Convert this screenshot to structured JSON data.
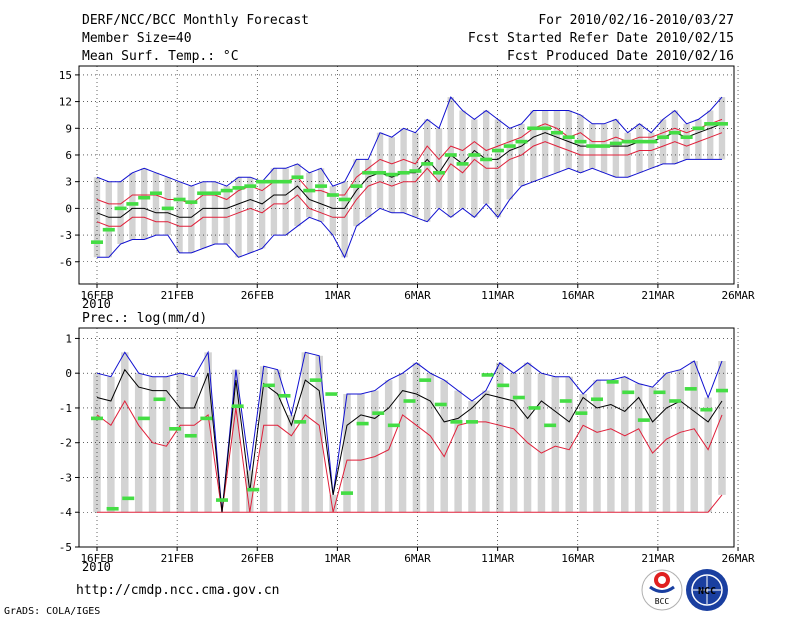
{
  "header": {
    "line1_left": "DERF/NCC/BCC Monthly Forecast",
    "line2_left": "Member Size=40",
    "line3_left": "Mean Surf. Temp.: °C",
    "line1_right": "For 2010/02/16-2010/03/27",
    "line2_right": "Fcst Started Refer Date 2010/02/15",
    "line3_right": "Fcst Produced Date 2010/02/16"
  },
  "footer": {
    "url": "http://cmdp.ncc.cma.gov.cn",
    "credit": "GrADS: COLA/IGES",
    "logo_bcc": "BCC",
    "logo_ncc": "NCC"
  },
  "colors": {
    "band": "#d3d3d3",
    "median": "#000000",
    "inner": "#e0203a",
    "outer": "#1010d0",
    "ensemble_mean": "#44dd44",
    "grid": "#000000"
  },
  "chart_data": [
    {
      "type": "line",
      "title": "Mean Surf. Temp.: °C",
      "x_tick_labels": [
        "16FEB",
        "21FEB",
        "26FEB",
        "1MAR",
        "6MAR",
        "11MAR",
        "16MAR",
        "21MAR",
        "26MAR"
      ],
      "x_year_label": "2010",
      "y_ticks": [
        "-6",
        "-3",
        "0",
        "3",
        "6",
        "9",
        "12",
        "15"
      ],
      "ylim": [
        -8.5,
        16
      ],
      "days": 40,
      "series": [
        {
          "name": "max",
          "values": [
            3.5,
            3,
            3,
            4,
            4.5,
            4,
            3.5,
            3,
            2.5,
            3,
            3,
            2.5,
            3.5,
            3.5,
            3,
            4.5,
            4.5,
            5,
            4,
            4.5,
            2.5,
            3,
            5.5,
            5.5,
            8.5,
            8,
            9,
            8.5,
            10,
            9,
            12.5,
            11,
            10,
            11,
            10,
            9,
            9.5,
            11,
            11,
            11,
            11,
            10.5,
            9.5,
            9.5,
            10,
            8.5,
            9.5,
            8.5,
            10,
            11,
            9.5,
            10,
            11,
            12.5
          ]
        },
        {
          "name": "upper",
          "values": [
            1,
            0.5,
            0.5,
            1.5,
            1.5,
            1.5,
            1,
            1,
            0.5,
            1.5,
            1.5,
            1,
            2,
            2.5,
            2,
            3,
            3,
            3.5,
            2,
            2,
            1.5,
            1.5,
            3.5,
            4.5,
            5.5,
            5,
            5.5,
            5,
            7,
            5.5,
            7,
            6.5,
            7.5,
            6.5,
            7,
            7.5,
            8,
            9,
            9.5,
            9,
            8,
            8.5,
            7.5,
            7.5,
            8,
            7.5,
            8,
            8,
            8.5,
            9,
            8.5,
            9,
            9.5,
            10
          ]
        },
        {
          "name": "median",
          "values": [
            -0.5,
            -1,
            -1,
            0,
            0,
            -0.5,
            -0.5,
            -1,
            -1,
            0,
            0,
            0,
            0.5,
            1,
            0.5,
            1.5,
            1.5,
            2.5,
            1,
            0.5,
            0,
            0,
            2,
            3.5,
            4,
            3.5,
            4,
            4,
            5.5,
            4,
            6,
            5,
            6.5,
            5.5,
            5.5,
            6.5,
            7,
            8,
            8.5,
            8,
            7.5,
            7,
            7,
            7,
            7,
            7,
            7.5,
            7.5,
            8,
            8.5,
            8,
            8.5,
            9,
            9.5
          ]
        },
        {
          "name": "lower",
          "values": [
            -1.5,
            -2,
            -2,
            -1,
            -1,
            -1.5,
            -1.5,
            -2,
            -2,
            -1,
            -1,
            -1,
            -0.5,
            0,
            -0.5,
            0.5,
            0.5,
            1.5,
            0,
            -0.5,
            -1,
            -1,
            1,
            2.5,
            3,
            2.5,
            3,
            3,
            4.5,
            3,
            5,
            4,
            5.5,
            4.5,
            4.5,
            5.5,
            6,
            7,
            7.5,
            7,
            6.5,
            6,
            6,
            6,
            6,
            6,
            6.5,
            6.5,
            7,
            7.5,
            7,
            7.5,
            8,
            8.5
          ]
        },
        {
          "name": "min",
          "values": [
            -5.5,
            -5.5,
            -4,
            -3.5,
            -3.5,
            -3,
            -3,
            -5,
            -5,
            -4.5,
            -4,
            -4,
            -5.5,
            -5,
            -4.5,
            -3,
            -3,
            -2,
            -1,
            -1.5,
            -3,
            -5.5,
            -2,
            -1,
            0,
            -0.5,
            -0.5,
            -1,
            -1.5,
            0,
            -1,
            0,
            -1,
            0.5,
            -1,
            1,
            2.5,
            3,
            3.5,
            4,
            4.5,
            4,
            4.5,
            4,
            3.5,
            3.5,
            4,
            4.5,
            5,
            5,
            5.5,
            5.5,
            5.5,
            5.5
          ]
        },
        {
          "name": "ensemble_mean",
          "values": [
            -3.8,
            -2.4,
            0,
            0.5,
            1.2,
            1.7,
            0,
            1,
            0.7,
            1.7,
            1.7,
            2,
            2.3,
            2.5,
            3,
            3,
            3,
            3.5,
            2,
            2.5,
            1.5,
            1,
            2.5,
            4,
            4,
            3.8,
            4,
            4.2,
            5,
            4,
            6,
            5,
            6,
            5.5,
            6.5,
            7,
            7.5,
            9,
            9,
            8.5,
            8,
            7.5,
            7,
            7,
            7.3,
            7.5,
            7.5,
            7.5,
            8,
            8.5,
            8,
            9,
            9.5,
            9.5
          ]
        }
      ]
    },
    {
      "type": "line",
      "title": "Prec.: log(mm/d)",
      "x_tick_labels": [
        "16FEB",
        "21FEB",
        "26FEB",
        "1MAR",
        "6MAR",
        "11MAR",
        "16MAR",
        "21MAR",
        "26MAR"
      ],
      "x_year_label": "2010",
      "y_ticks": [
        "-5",
        "-4",
        "-3",
        "-2",
        "-1",
        "0",
        "1"
      ],
      "ylim": [
        -5,
        1.3
      ],
      "days": 40,
      "series": [
        {
          "name": "max",
          "values": [
            0,
            -0.1,
            0.6,
            0,
            -0.1,
            -0.1,
            0,
            -0.1,
            0.6,
            -4,
            0.1,
            -2.8,
            0.2,
            0.1,
            -1.2,
            0.6,
            0.5,
            -3.5,
            -0.6,
            -0.6,
            -0.5,
            -0.2,
            0,
            0.3,
            0,
            -0.2,
            -0.5,
            -0.8,
            -0.5,
            0.3,
            0,
            0.3,
            0,
            -0.1,
            -0.1,
            -0.6,
            -0.2,
            -0.2,
            -0.1,
            -0.3,
            -0.4,
            0,
            0.1,
            0.35,
            -0.7,
            0.35
          ]
        },
        {
          "name": "median",
          "values": [
            -0.7,
            -0.8,
            0.1,
            -0.4,
            -0.5,
            -0.5,
            -1,
            -1,
            0,
            -4,
            -0.2,
            -3.4,
            -0.3,
            -0.6,
            -1.5,
            -0.2,
            -0.5,
            -3.5,
            -1.5,
            -1.2,
            -1.3,
            -1,
            -0.5,
            -0.6,
            -0.8,
            -1.4,
            -1.3,
            -1,
            -0.6,
            -0.7,
            -0.8,
            -1.3,
            -0.8,
            -1.1,
            -1.4,
            -0.7,
            -1,
            -0.9,
            -1.1,
            -0.7,
            -1.4,
            -1,
            -0.8,
            -1.1,
            -1.4,
            -0.8
          ]
        },
        {
          "name": "inner",
          "values": [
            -1.2,
            -1.5,
            -0.8,
            -1.5,
            -2,
            -2.1,
            -1.5,
            -1.5,
            -1.2,
            -4,
            -1,
            -4,
            -1.5,
            -1.5,
            -1.8,
            -1.2,
            -1.5,
            -4,
            -2.5,
            -2.5,
            -2.4,
            -2.2,
            -1.2,
            -1.5,
            -1.8,
            -2.4,
            -1.5,
            -1.4,
            -1.4,
            -1.5,
            -1.6,
            -2,
            -2.3,
            -2.1,
            -2.2,
            -1.5,
            -1.7,
            -1.6,
            -1.8,
            -1.6,
            -2.3,
            -1.9,
            -1.7,
            -1.6,
            -2.2,
            -1.2
          ]
        },
        {
          "name": "floor",
          "values": [
            -4,
            -4,
            -4,
            -4,
            -4,
            -4,
            -4,
            -4,
            -4,
            -4,
            -4,
            -4,
            -4,
            -4,
            -4,
            -4,
            -4,
            -4,
            -4,
            -4,
            -4,
            -4,
            -4,
            -4,
            -4,
            -4,
            -4,
            -4,
            -4,
            -4,
            -4,
            -4,
            -4,
            -4,
            -4,
            -4,
            -4,
            -4,
            -4,
            -4,
            -4,
            -4,
            -4,
            -4,
            -4,
            -3.5
          ]
        },
        {
          "name": "ensemble_mean",
          "values": [
            -1.3,
            -3.9,
            -3.6,
            -1.3,
            -0.75,
            -1.6,
            -1.8,
            -1.3,
            -3.65,
            -0.95,
            -3.35,
            -0.35,
            -0.65,
            -1.4,
            -0.2,
            -0.6,
            -3.45,
            -1.45,
            -1.15,
            -1.5,
            -0.8,
            -0.2,
            -0.9,
            -1.4,
            -1.4,
            -0.05,
            -0.35,
            -0.7,
            -1,
            -1.5,
            -0.8,
            -1.15,
            -0.75,
            -0.25,
            -0.55,
            -1.35,
            -0.55,
            -0.8,
            -0.45,
            -1.05,
            -0.5
          ]
        }
      ]
    }
  ]
}
